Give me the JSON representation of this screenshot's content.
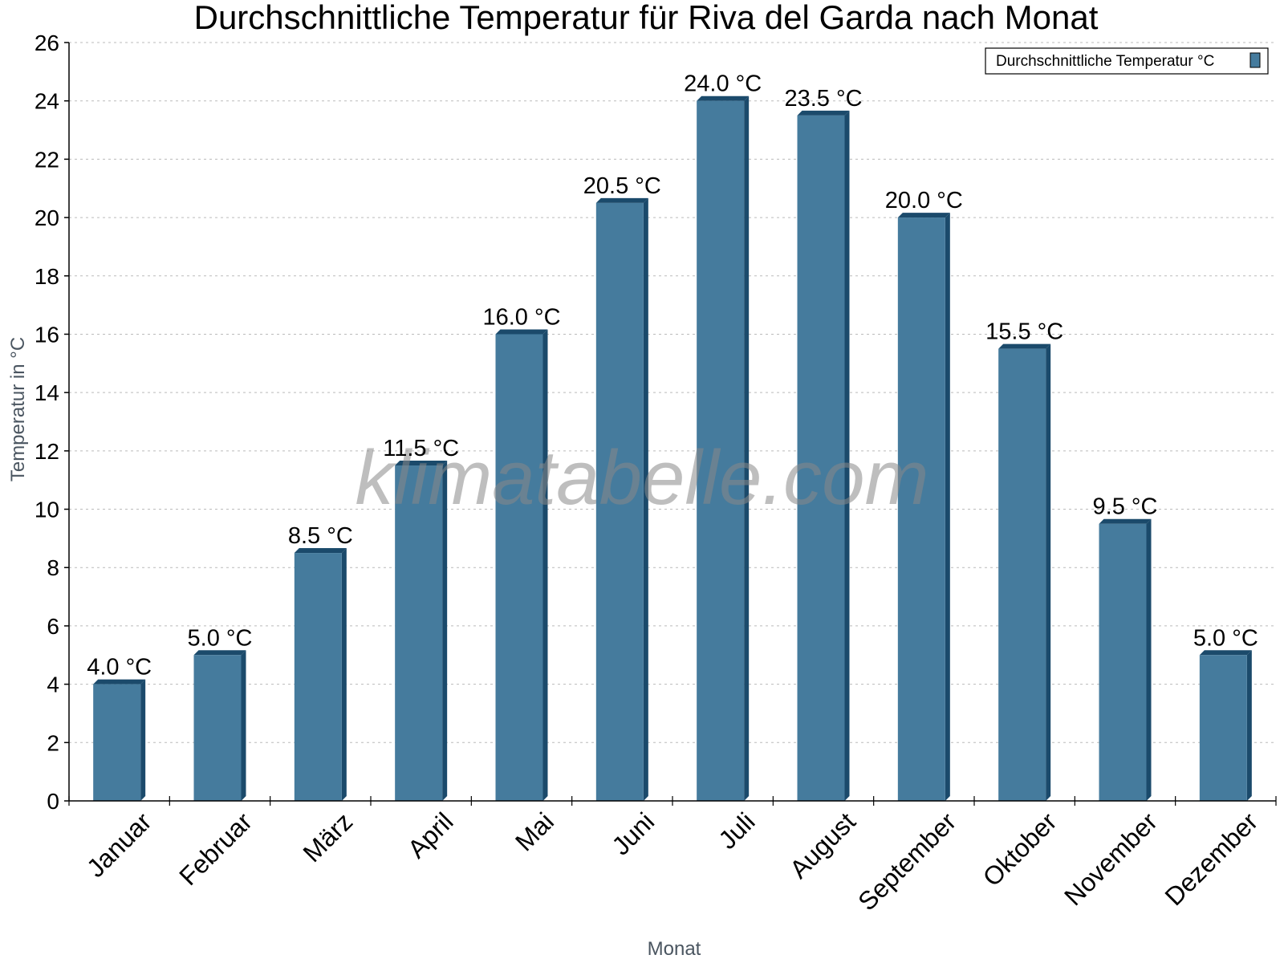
{
  "chart_data": {
    "type": "bar",
    "title": "Durchschnittliche Temperatur für Riva del Garda nach Monat",
    "xlabel": "Monat",
    "ylabel": "Temperatur in °C",
    "categories": [
      "Januar",
      "Februar",
      "März",
      "April",
      "Mai",
      "Juni",
      "Juli",
      "August",
      "September",
      "Oktober",
      "November",
      "Dezember"
    ],
    "series": [
      {
        "name": "Durchschnittliche Temperatur °C",
        "color": "#457b9d",
        "side_color": "#1b4a6b",
        "values": [
          4.0,
          5.0,
          8.5,
          11.5,
          16.0,
          20.5,
          24.0,
          23.5,
          20.0,
          15.5,
          9.5,
          5.0
        ]
      }
    ],
    "value_labels": [
      "4.0 °C",
      "5.0 °C",
      "8.5 °C",
      "11.5 °C",
      "16.0 °C",
      "20.5 °C",
      "24.0 °C",
      "23.5 °C",
      "20.0 °C",
      "15.5 °C",
      "9.5 °C",
      "5.0 °C"
    ],
    "ylim": [
      0,
      26
    ],
    "yticks": [
      0,
      2,
      4,
      6,
      8,
      10,
      12,
      14,
      16,
      18,
      20,
      22,
      24,
      26
    ],
    "grid": true,
    "legend_position": "top-right",
    "watermark": "klimatabelle.com"
  }
}
